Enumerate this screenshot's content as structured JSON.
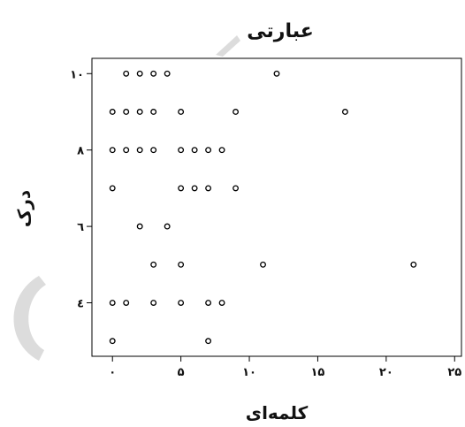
{
  "chart_data": {
    "type": "scatter",
    "title": "عبارتی",
    "xlabel": "کلمه‌ای",
    "ylabel": "درک",
    "xlim": [
      -1.5,
      25.5
    ],
    "ylim": [
      2.6,
      10.4
    ],
    "xticks": [
      0,
      5,
      10,
      15,
      20,
      25
    ],
    "xtick_labels": [
      "۰",
      "۵",
      "۱۰",
      "۱۵",
      "۲۰",
      "۲۵"
    ],
    "yticks": [
      4,
      6,
      8,
      10
    ],
    "ytick_labels": [
      "٤",
      "٦",
      "۸",
      "۱۰"
    ],
    "grid": false,
    "points": [
      {
        "x": 1,
        "y": 10
      },
      {
        "x": 2,
        "y": 10
      },
      {
        "x": 3,
        "y": 10
      },
      {
        "x": 4,
        "y": 10
      },
      {
        "x": 12,
        "y": 10
      },
      {
        "x": 0,
        "y": 9
      },
      {
        "x": 1,
        "y": 9
      },
      {
        "x": 2,
        "y": 9
      },
      {
        "x": 3,
        "y": 9
      },
      {
        "x": 5,
        "y": 9
      },
      {
        "x": 9,
        "y": 9
      },
      {
        "x": 17,
        "y": 9
      },
      {
        "x": 0,
        "y": 8
      },
      {
        "x": 1,
        "y": 8
      },
      {
        "x": 2,
        "y": 8
      },
      {
        "x": 3,
        "y": 8
      },
      {
        "x": 5,
        "y": 8
      },
      {
        "x": 6,
        "y": 8
      },
      {
        "x": 7,
        "y": 8
      },
      {
        "x": 8,
        "y": 8
      },
      {
        "x": 0,
        "y": 7
      },
      {
        "x": 5,
        "y": 7
      },
      {
        "x": 6,
        "y": 7
      },
      {
        "x": 7,
        "y": 7
      },
      {
        "x": 9,
        "y": 7
      },
      {
        "x": 2,
        "y": 6
      },
      {
        "x": 4,
        "y": 6
      },
      {
        "x": 3,
        "y": 5
      },
      {
        "x": 5,
        "y": 5
      },
      {
        "x": 11,
        "y": 5
      },
      {
        "x": 22,
        "y": 5
      },
      {
        "x": 0,
        "y": 4
      },
      {
        "x": 1,
        "y": 4
      },
      {
        "x": 3,
        "y": 4
      },
      {
        "x": 5,
        "y": 4
      },
      {
        "x": 7,
        "y": 4
      },
      {
        "x": 8,
        "y": 4
      },
      {
        "x": 0,
        "y": 3
      },
      {
        "x": 7,
        "y": 3
      }
    ]
  }
}
